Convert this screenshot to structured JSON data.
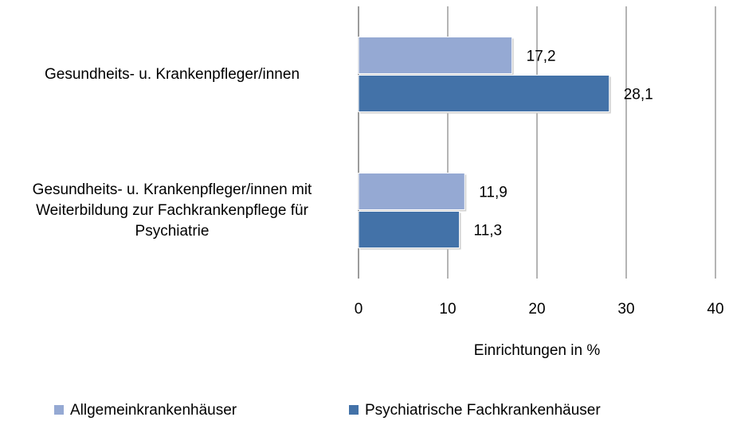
{
  "chart_data": {
    "type": "bar",
    "orientation": "horizontal",
    "categories": [
      "Gesundheits- u. Krankenpfleger/innen",
      "Gesundheits- u. Krankenpfleger/innen mit Weiterbildung zur Fachkrankenpflege für Psychiatrie"
    ],
    "series": [
      {
        "name": "Allgemeinkrankenhäuser",
        "color": "#95a9d3",
        "values": [
          17.2,
          11.9
        ],
        "value_labels": [
          "17,2",
          "11,9"
        ]
      },
      {
        "name": "Psychiatrische Fachkrankenhäuser",
        "color": "#4372a8",
        "values": [
          28.1,
          11.3
        ],
        "value_labels": [
          "28,1",
          "11,3"
        ]
      }
    ],
    "x_label": "Einrichtungen in %",
    "xlim": [
      0,
      40
    ],
    "xticks": [
      0,
      10,
      20,
      30,
      40
    ],
    "grid": true,
    "legend": "bottom"
  }
}
